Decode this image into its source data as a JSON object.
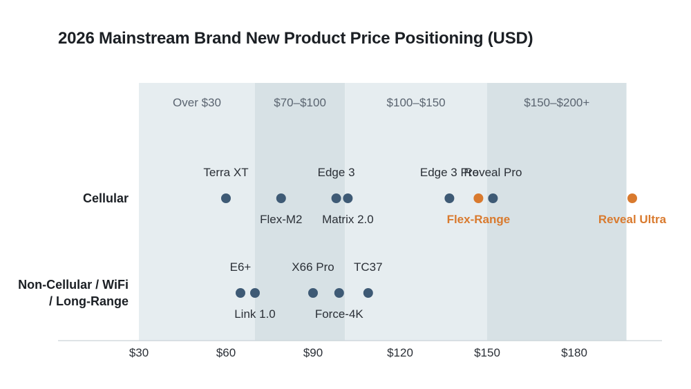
{
  "chart_data": {
    "type": "scatter",
    "title": "2026 Mainstream Brand New Product Price Positioning (USD)",
    "xlim": [
      30,
      198
    ],
    "x_ticks": [
      {
        "value": 30,
        "label": "$30"
      },
      {
        "value": 60,
        "label": "$60"
      },
      {
        "value": 90,
        "label": "$90"
      },
      {
        "value": 120,
        "label": "$120"
      },
      {
        "value": 150,
        "label": "$150"
      },
      {
        "value": 180,
        "label": "$180"
      }
    ],
    "bands": [
      {
        "label": "Over $30",
        "from": 30,
        "to": 70
      },
      {
        "label": "$70–$100",
        "from": 70,
        "to": 101
      },
      {
        "label": "$100–$150",
        "from": 101,
        "to": 150
      },
      {
        "label": "$150–$200+",
        "from": 150,
        "to": 198
      }
    ],
    "rows": [
      {
        "id": "cellular",
        "label": [
          "Cellular"
        ]
      },
      {
        "id": "noncell",
        "label": [
          "Non-Cellular / WiFi",
          "/ Long-Range"
        ]
      }
    ],
    "points": [
      {
        "row": "cellular",
        "name": "Terra XT",
        "x": 60,
        "label_pos": "above",
        "highlight": false
      },
      {
        "row": "cellular",
        "name": "Flex-M2",
        "x": 79,
        "label_pos": "below",
        "highlight": false
      },
      {
        "row": "cellular",
        "name": "Edge 3",
        "x": 98,
        "label_pos": "above",
        "highlight": false
      },
      {
        "row": "cellular",
        "name": "Matrix 2.0",
        "x": 102,
        "label_pos": "below",
        "highlight": false
      },
      {
        "row": "cellular",
        "name": "Edge 3 Pro",
        "x": 137,
        "label_pos": "above",
        "highlight": false
      },
      {
        "row": "cellular",
        "name": "Flex-Range",
        "x": 147,
        "label_pos": "below",
        "highlight": true
      },
      {
        "row": "cellular",
        "name": "Reveal Pro",
        "x": 152,
        "label_pos": "above",
        "highlight": false
      },
      {
        "row": "cellular",
        "name": "Reveal Ultra",
        "x": 200,
        "label_pos": "below",
        "highlight": true
      },
      {
        "row": "noncell",
        "name": "E6+",
        "x": 65,
        "label_pos": "above",
        "highlight": false
      },
      {
        "row": "noncell",
        "name": "Link 1.0",
        "x": 70,
        "label_pos": "below",
        "highlight": false
      },
      {
        "row": "noncell",
        "name": "X66 Pro",
        "x": 90,
        "label_pos": "above",
        "highlight": false
      },
      {
        "row": "noncell",
        "name": "Force-4K",
        "x": 99,
        "label_pos": "below",
        "highlight": false
      },
      {
        "row": "noncell",
        "name": "TC37",
        "x": 109,
        "label_pos": "above",
        "highlight": false
      }
    ],
    "colors": {
      "point": "#3e5a75",
      "highlight": "#d97a2e",
      "band_a": "#e6edf0",
      "band_b": "#d7e1e5"
    },
    "grid": false,
    "legend": "none"
  }
}
